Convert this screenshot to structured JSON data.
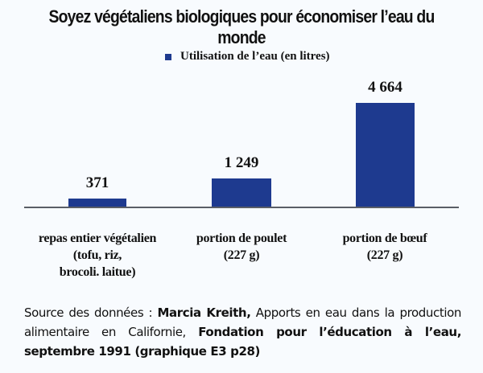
{
  "chart_data": {
    "type": "bar",
    "title": "Soyez végétaliens biologiques pour économiser l’eau du monde",
    "legend": [
      "Utilisation de l’eau (en litres)"
    ],
    "legend_position": "top",
    "categories": [
      "repas entier végétalien (tofu, riz, brocoli. laitue)",
      "portion de poulet (227 g)",
      "portion de bœuf (227 g)"
    ],
    "series": [
      {
        "name": "Utilisation de l’eau (en litres)",
        "values": [
          371,
          1249,
          4664
        ],
        "color": "#1e3a8f"
      }
    ],
    "value_labels": [
      "371",
      "1 249",
      "4 664"
    ],
    "xlabel": "",
    "ylabel": "",
    "grid": false,
    "ylim": [
      0,
      5000
    ]
  },
  "title": "Soyez végétaliens biologiques pour économiser l’eau du monde",
  "legend": {
    "label": "Utilisation de l’eau (en litres)",
    "color": "#1e3a8f"
  },
  "bars": [
    {
      "value_label": "371",
      "label_lines": [
        "repas entier végétalien",
        "(tofu, riz,",
        "brocoli. laitue)"
      ]
    },
    {
      "value_label": "1 249",
      "label_lines": [
        "portion de poulet",
        "(227 g)"
      ]
    },
    {
      "value_label": "4 664",
      "label_lines": [
        "portion de bœuf",
        "(227 g)"
      ]
    }
  ],
  "source": {
    "prefix": "Source des données : ",
    "author": "Marcia Kreith,",
    "work": " Apports en eau dans la production alimentaire en Californie, ",
    "publisher": "Fondation pour l’éducation à l’eau, septembre 1991 (graphique E3 p28)"
  }
}
